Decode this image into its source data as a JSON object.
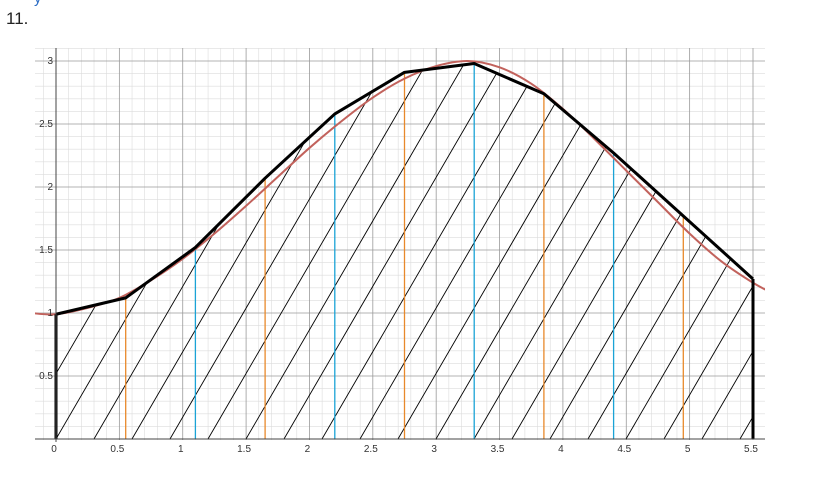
{
  "header": {
    "problem_number": "11.",
    "top_fragment": "y"
  },
  "colors": {
    "curve": "#c2625c",
    "polygon": "#000000",
    "hatch": "#000000",
    "orange": "#e8892b",
    "blue": "#1aa3d6",
    "grid_major": "#9a9a9a",
    "grid_minor": "#dcdcdc"
  },
  "chart_data": {
    "type": "area",
    "title": "",
    "xlabel": "",
    "ylabel": "",
    "xlim": [
      0,
      5.5
    ],
    "ylim": [
      0,
      3
    ],
    "grid": true,
    "x_ticks": [
      "0",
      "0.5",
      "1",
      "1.5",
      "2",
      "2.5",
      "3",
      "3.5",
      "4",
      "4.5",
      "5",
      "5.5"
    ],
    "y_ticks": [
      "0.5",
      "1",
      "1.5",
      "2",
      "2.5",
      "3"
    ],
    "curve": {
      "x": [
        -0.2,
        0,
        0.25,
        0.5,
        0.75,
        1,
        1.25,
        1.5,
        1.75,
        2,
        2.25,
        2.5,
        2.75,
        3,
        3.25,
        3.5,
        3.75,
        4,
        4.25,
        4.5,
        4.75,
        5,
        5.25,
        5.5,
        5.65
      ],
      "y": [
        1.0,
        0.99,
        1.04,
        1.12,
        1.26,
        1.43,
        1.63,
        1.85,
        2.08,
        2.31,
        2.52,
        2.71,
        2.86,
        2.96,
        3.0,
        2.95,
        2.82,
        2.62,
        2.38,
        2.13,
        1.88,
        1.63,
        1.41,
        1.24,
        1.16
      ]
    },
    "polygon": {
      "x": [
        0,
        0.55,
        1.1,
        1.65,
        2.2,
        2.75,
        3.3,
        3.85,
        4.4,
        4.95,
        5.5
      ],
      "y": [
        0.99,
        1.12,
        1.52,
        2.07,
        2.58,
        2.91,
        2.98,
        2.74,
        2.27,
        1.77,
        1.27
      ]
    },
    "vertical_lines": [
      {
        "x": 0.55,
        "color": "orange"
      },
      {
        "x": 1.1,
        "color": "blue"
      },
      {
        "x": 1.65,
        "color": "orange"
      },
      {
        "x": 2.2,
        "color": "blue"
      },
      {
        "x": 2.75,
        "color": "orange"
      },
      {
        "x": 3.3,
        "color": "blue"
      },
      {
        "x": 3.85,
        "color": "orange"
      },
      {
        "x": 4.4,
        "color": "blue"
      },
      {
        "x": 4.95,
        "color": "orange"
      }
    ]
  }
}
